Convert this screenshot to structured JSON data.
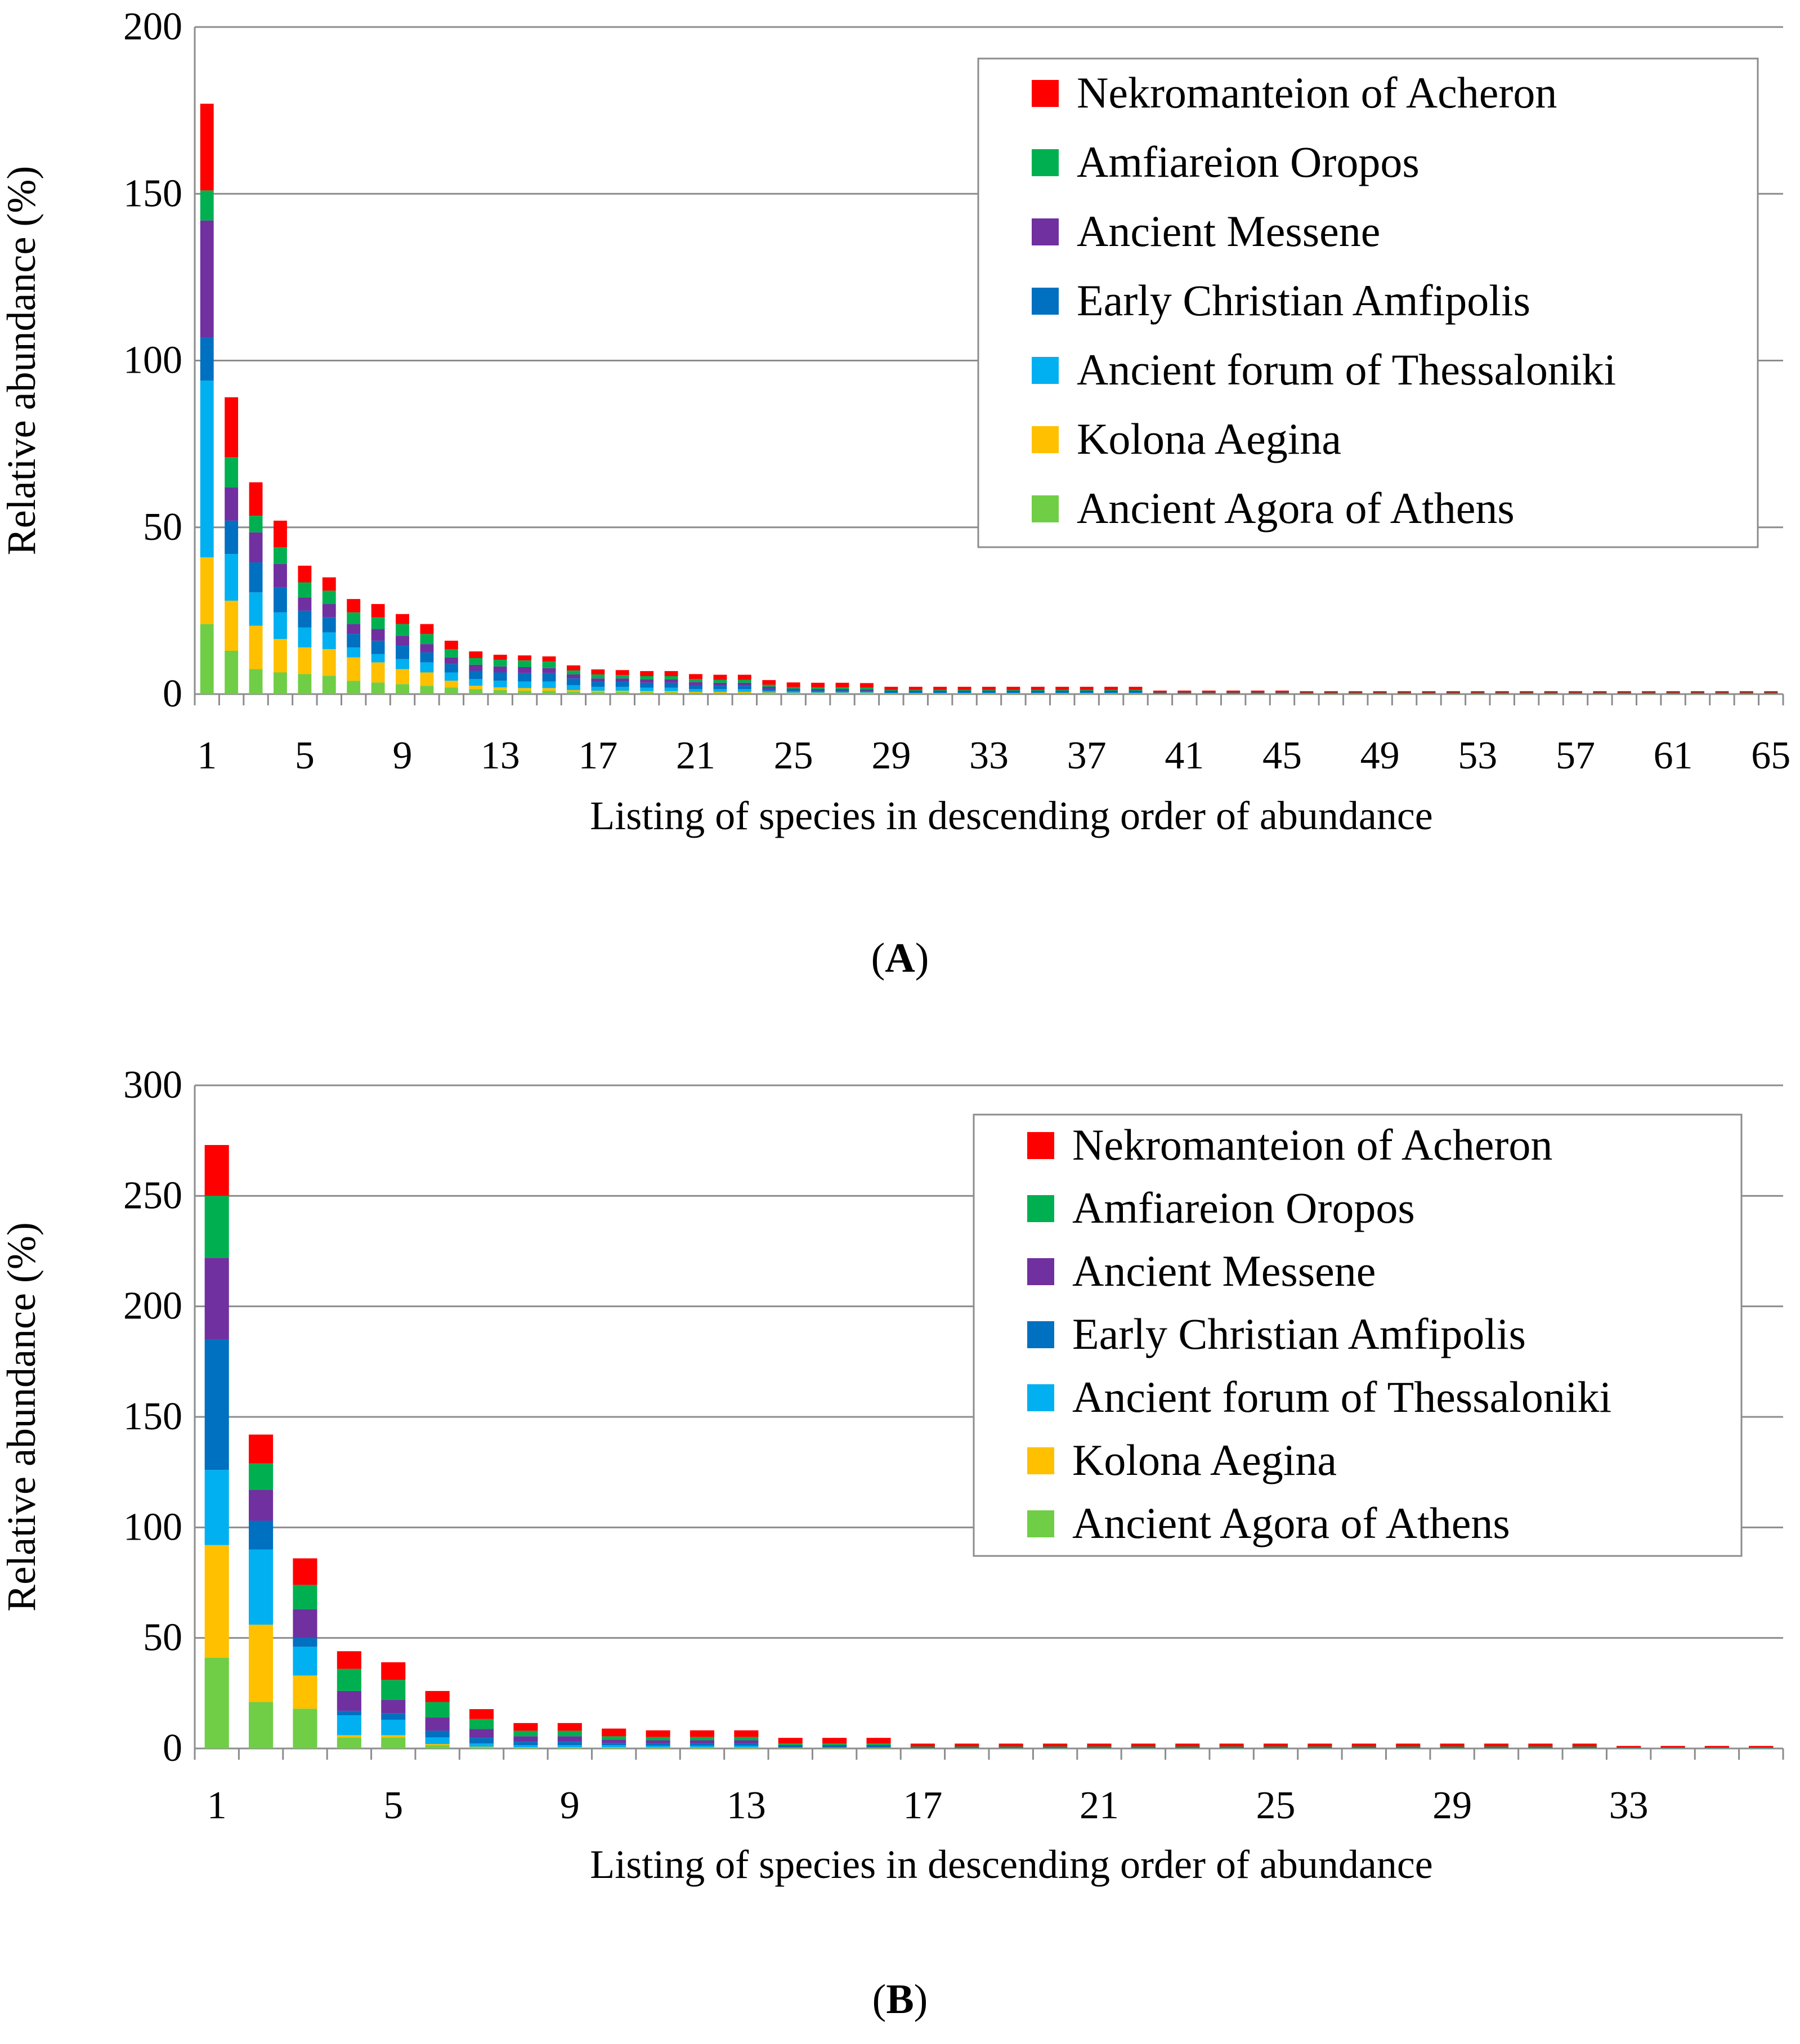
{
  "chart_data": [
    {
      "type": "bar",
      "stacked": true,
      "panel_label": "A",
      "xlabel": "Listing of species in descending order of abundance",
      "ylabel": "Relative abundance (%)",
      "ylim": [
        0,
        200
      ],
      "yticks": [
        0,
        50,
        100,
        150,
        200
      ],
      "xtick_labels": [
        "1",
        "5",
        "9",
        "13",
        "17",
        "21",
        "25",
        "29",
        "33",
        "37",
        "41",
        "45",
        "49",
        "53",
        "57",
        "61",
        "65"
      ],
      "legend_position": "top-right",
      "categories": [
        1,
        2,
        3,
        4,
        5,
        6,
        7,
        8,
        9,
        10,
        11,
        12,
        13,
        14,
        15,
        16,
        17,
        18,
        19,
        20,
        21,
        22,
        23,
        24,
        25,
        26,
        27,
        28,
        29,
        30,
        31,
        32,
        33,
        34,
        35,
        36,
        37,
        38,
        39,
        40,
        41,
        42,
        43,
        44,
        45,
        46,
        47,
        48,
        49,
        50,
        51,
        52,
        53,
        54,
        55,
        56,
        57,
        58,
        59,
        60,
        61,
        62,
        63,
        64,
        65
      ],
      "series": [
        {
          "name": "Ancient Agora of Athens",
          "color": "#6fce45",
          "values": [
            21,
            13,
            7.5,
            6.5,
            6,
            5.5,
            4,
            3.5,
            3,
            2.5,
            2,
            1.5,
            1.2,
            1,
            1,
            0.8,
            0.6,
            0.6,
            0.5,
            0.5,
            0.4,
            0.4,
            0.4,
            0.3,
            0.2,
            0.2,
            0.2,
            0.2,
            0.1,
            0.1,
            0.1,
            0.1,
            0.1,
            0.1,
            0.1,
            0.1,
            0.1,
            0.1,
            0.1,
            0.05,
            0.05,
            0.05,
            0.05,
            0.05,
            0.05,
            0.05,
            0.05,
            0.05,
            0.05,
            0.05,
            0.05,
            0.05,
            0.05,
            0.05,
            0.05,
            0.05,
            0.05,
            0.05,
            0.05,
            0.05,
            0.05,
            0.05,
            0.05,
            0.05,
            0.05
          ]
        },
        {
          "name": "Kolona Aegina",
          "color": "#ffc000",
          "values": [
            20,
            15,
            13,
            10,
            8,
            8,
            7,
            6,
            4.5,
            4,
            2,
            1,
            0.8,
            0.8,
            0.8,
            0.4,
            0.4,
            0.4,
            0.4,
            0.4,
            0.3,
            0.3,
            0.3,
            0.2,
            0.2,
            0.2,
            0.2,
            0.2,
            0.1,
            0.1,
            0.1,
            0.1,
            0.1,
            0.1,
            0.1,
            0.1,
            0.1,
            0.1,
            0.1,
            0.05,
            0.05,
            0.05,
            0.05,
            0.05,
            0.05,
            0.05,
            0.05,
            0.05,
            0.05,
            0.05,
            0.05,
            0.05,
            0.05,
            0.05,
            0.05,
            0.05,
            0.05,
            0.05,
            0.05,
            0.05,
            0.05,
            0.05,
            0.05,
            0.05,
            0.05
          ]
        },
        {
          "name": "Ancient forum of Thessaloniki",
          "color": "#00b0f0",
          "values": [
            53,
            14,
            10,
            8,
            6,
            5,
            3,
            2.5,
            3,
            3,
            2.5,
            2,
            2,
            2,
            2,
            1.5,
            1.2,
            1.2,
            1,
            1,
            0.8,
            0.8,
            0.8,
            0.5,
            0.4,
            0.3,
            0.3,
            0.3,
            0.2,
            0.2,
            0.2,
            0.2,
            0.2,
            0.2,
            0.2,
            0.2,
            0.2,
            0.2,
            0.2,
            0.1,
            0.1,
            0.1,
            0.1,
            0.1,
            0.1,
            0.05,
            0.05,
            0.05,
            0.05,
            0.05,
            0.05,
            0.05,
            0.05,
            0.05,
            0.05,
            0.05,
            0.05,
            0.05,
            0.05,
            0.05,
            0.05,
            0.05,
            0.05,
            0.05,
            0.05
          ]
        },
        {
          "name": "Early Christian Amfipolis",
          "color": "#0070c0",
          "values": [
            13,
            10,
            9,
            7.5,
            5,
            4.5,
            4,
            4,
            4,
            3,
            2.5,
            2.5,
            2.5,
            2.5,
            2.5,
            2,
            1.5,
            1.5,
            1.5,
            1.5,
            1.2,
            1,
            1,
            0.6,
            0.4,
            0.4,
            0.4,
            0.3,
            0.3,
            0.3,
            0.3,
            0.3,
            0.3,
            0.3,
            0.3,
            0.3,
            0.3,
            0.3,
            0.3,
            0.1,
            0.1,
            0.1,
            0.1,
            0.1,
            0.1,
            0.1,
            0.1,
            0.1,
            0.1,
            0.1,
            0.1,
            0.1,
            0.1,
            0.1,
            0.1,
            0.1,
            0.1,
            0.1,
            0.1,
            0.1,
            0.1,
            0.1,
            0.1,
            0.1,
            0.1
          ]
        },
        {
          "name": "Ancient Messene",
          "color": "#7030a0",
          "values": [
            35,
            10,
            9,
            7,
            4,
            4,
            3,
            3.5,
            3,
            2.5,
            2,
            1.8,
            1.8,
            1.8,
            1.5,
            1.2,
            1,
            1,
            1,
            1,
            0.9,
            0.9,
            0.9,
            0.6,
            0.4,
            0.4,
            0.4,
            0.4,
            0.3,
            0.3,
            0.3,
            0.3,
            0.3,
            0.3,
            0.3,
            0.3,
            0.3,
            0.3,
            0.3,
            0.1,
            0.1,
            0.1,
            0.1,
            0.1,
            0.1,
            0.1,
            0.1,
            0.1,
            0.1,
            0.1,
            0.1,
            0.1,
            0.1,
            0.1,
            0.1,
            0.1,
            0.1,
            0.1,
            0.1,
            0.1,
            0.1,
            0.1,
            0.1,
            0.1,
            0.1
          ]
        },
        {
          "name": "Amfiareion Oropos",
          "color": "#00b050",
          "values": [
            9,
            9,
            5,
            5,
            4.5,
            4,
            3.5,
            3.5,
            3.5,
            3,
            2.5,
            2,
            2,
            2,
            2,
            1.2,
            1.2,
            1,
            1,
            1,
            0.9,
            0.9,
            0.9,
            0.6,
            0.5,
            0.5,
            0.5,
            0.5,
            0.3,
            0.3,
            0.3,
            0.3,
            0.3,
            0.3,
            0.3,
            0.3,
            0.3,
            0.3,
            0.3,
            0.1,
            0.1,
            0.1,
            0.1,
            0.1,
            0.1,
            0.1,
            0.1,
            0.1,
            0.1,
            0.1,
            0.1,
            0.1,
            0.1,
            0.1,
            0.1,
            0.1,
            0.1,
            0.1,
            0.1,
            0.1,
            0.1,
            0.1,
            0.1,
            0.1,
            0.1
          ]
        },
        {
          "name": "Nekromanteion of Acheron",
          "color": "#ff0000",
          "values": [
            26,
            18,
            10,
            8,
            5,
            4,
            4,
            4,
            3,
            3,
            2.5,
            2,
            1.5,
            1.5,
            1.5,
            1.5,
            1.5,
            1.5,
            1.5,
            1.5,
            1.5,
            1.5,
            1.5,
            1.4,
            1.4,
            1.4,
            1.4,
            1.4,
            0.9,
            0.9,
            0.9,
            0.9,
            0.9,
            0.9,
            0.9,
            0.9,
            0.9,
            0.9,
            0.9,
            0.55,
            0.55,
            0.55,
            0.55,
            0.55,
            0.55,
            0.2,
            0.2,
            0.2,
            0.2,
            0.2,
            0.2,
            0.2,
            0.2,
            0.2,
            0.2,
            0.2,
            0.2,
            0.2,
            0.2,
            0.2,
            0.2,
            0.2,
            0.2,
            0.2,
            0.2
          ]
        }
      ]
    },
    {
      "type": "bar",
      "stacked": true,
      "panel_label": "B",
      "xlabel": "Listing of species in descending order of abundance",
      "ylabel": "Relative abundance (%)",
      "ylim": [
        0,
        300
      ],
      "yticks": [
        0,
        50,
        100,
        150,
        200,
        250,
        300
      ],
      "xtick_labels": [
        "1",
        "5",
        "9",
        "13",
        "17",
        "21",
        "25",
        "29",
        "33"
      ],
      "legend_position": "top-right",
      "categories": [
        1,
        2,
        3,
        4,
        5,
        6,
        7,
        8,
        9,
        10,
        11,
        12,
        13,
        14,
        15,
        16,
        17,
        18,
        19,
        20,
        21,
        22,
        23,
        24,
        25,
        26,
        27,
        28,
        29,
        30,
        31,
        32,
        33,
        34,
        35,
        36
      ],
      "series": [
        {
          "name": "Ancient Agora of Athens",
          "color": "#6fce45",
          "values": [
            41,
            21,
            18,
            5,
            5,
            1.5,
            0.5,
            0.3,
            0.3,
            0.3,
            0.2,
            0.2,
            0.2,
            0.1,
            0.1,
            0.1,
            0.05,
            0.05,
            0.05,
            0.05,
            0.05,
            0.05,
            0.05,
            0.05,
            0.05,
            0.05,
            0.05,
            0.05,
            0.05,
            0.05,
            0.05,
            0.05,
            0.05,
            0.05,
            0.05,
            0.05
          ]
        },
        {
          "name": "Kolona Aegina",
          "color": "#ffc000",
          "values": [
            51,
            35,
            15,
            1,
            1,
            0.5,
            0.3,
            0.2,
            0.2,
            0.2,
            0.2,
            0.2,
            0.2,
            0.1,
            0.1,
            0.1,
            0.05,
            0.05,
            0.05,
            0.05,
            0.05,
            0.05,
            0.05,
            0.05,
            0.05,
            0.05,
            0.05,
            0.05,
            0.05,
            0.05,
            0.05,
            0.05,
            0.05,
            0.05,
            0.05,
            0.05
          ]
        },
        {
          "name": "Ancient forum of Thessaloniki",
          "color": "#00b0f0",
          "values": [
            34,
            34,
            13,
            9,
            7,
            3,
            1.5,
            1,
            1,
            1,
            0.8,
            0.8,
            0.8,
            0.3,
            0.3,
            0.3,
            0.1,
            0.1,
            0.1,
            0.1,
            0.1,
            0.1,
            0.1,
            0.1,
            0.1,
            0.1,
            0.1,
            0.1,
            0.1,
            0.1,
            0.1,
            0.1,
            0.1,
            0.1,
            0.1,
            0.1
          ]
        },
        {
          "name": "Early Christian Amfipolis",
          "color": "#0070c0",
          "values": [
            59,
            13,
            4,
            2,
            3,
            3,
            2.5,
            1.5,
            1.5,
            1,
            1,
            1,
            1,
            0.5,
            0.5,
            0.5,
            0.2,
            0.2,
            0.2,
            0.2,
            0.2,
            0.2,
            0.2,
            0.2,
            0.2,
            0.2,
            0.2,
            0.2,
            0.2,
            0.2,
            0.2,
            0.2,
            0.1,
            0.1,
            0.1,
            0.1
          ]
        },
        {
          "name": "Ancient Messene",
          "color": "#7030a0",
          "values": [
            37,
            14,
            13,
            9,
            6,
            6,
            4,
            2.5,
            2.5,
            1.5,
            1.5,
            1.5,
            1.5,
            0.5,
            0.5,
            0.5,
            0.2,
            0.2,
            0.2,
            0.2,
            0.2,
            0.2,
            0.2,
            0.2,
            0.2,
            0.2,
            0.2,
            0.2,
            0.2,
            0.2,
            0.2,
            0.2,
            0.1,
            0.1,
            0.1,
            0.1
          ]
        },
        {
          "name": "Amfiareion Oropos",
          "color": "#00b050",
          "values": [
            28,
            12,
            11,
            10,
            9,
            7,
            4.5,
            2.5,
            2.5,
            1.5,
            1.5,
            1.5,
            1.5,
            0.8,
            0.8,
            0.8,
            0.3,
            0.3,
            0.3,
            0.3,
            0.3,
            0.3,
            0.3,
            0.3,
            0.3,
            0.3,
            0.3,
            0.3,
            0.3,
            0.3,
            0.3,
            0.3,
            0.1,
            0.1,
            0.1,
            0.1
          ]
        },
        {
          "name": "Nekromanteion of Acheron",
          "color": "#ff0000",
          "values": [
            23,
            13,
            12,
            8,
            8,
            5,
            4.5,
            3.5,
            3.5,
            3.5,
            3,
            3,
            3,
            2.5,
            2.5,
            2.5,
            1.3,
            1.3,
            1.3,
            1.3,
            1.3,
            1.3,
            1.3,
            1.3,
            1.3,
            1.3,
            1.3,
            1.3,
            1.3,
            1.3,
            1.3,
            1.3,
            0.4,
            0.4,
            0.4,
            0.4
          ]
        }
      ]
    }
  ]
}
